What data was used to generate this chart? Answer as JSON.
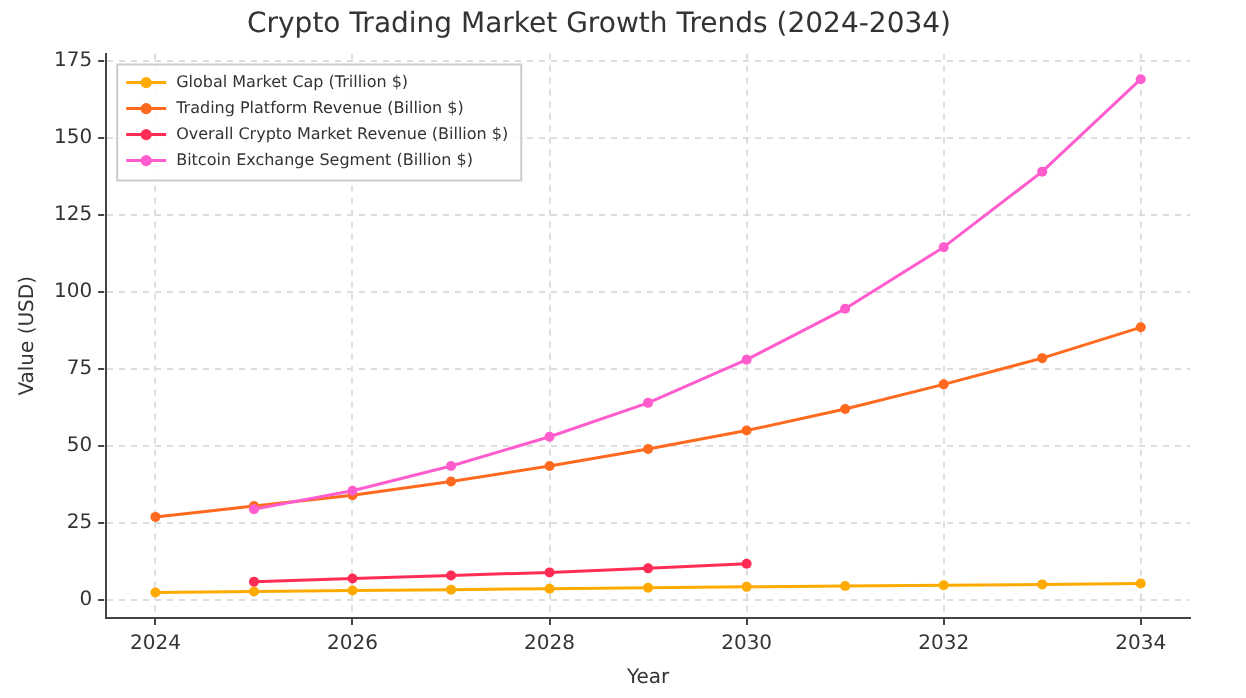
{
  "chart_data": {
    "type": "line",
    "title": "Crypto Trading Market Growth Trends (2024-2034)",
    "xlabel": "Year",
    "ylabel": "Value (USD)",
    "x": [
      2024,
      2025,
      2026,
      2027,
      2028,
      2029,
      2030,
      2031,
      2032,
      2033,
      2034
    ],
    "series": [
      {
        "name": "Global Market Cap (Trillion $)",
        "color": "#ffaa00",
        "values": [
          2.5,
          2.8,
          3.1,
          3.4,
          3.7,
          4.0,
          4.3,
          4.6,
          4.8,
          5.1,
          5.4
        ]
      },
      {
        "name": "Trading Platform Revenue (Billion $)",
        "color": "#ff6a1f",
        "values": [
          27,
          30.5,
          34,
          38.5,
          43.5,
          49,
          55,
          62,
          70,
          78.5,
          88.5
        ]
      },
      {
        "name": "Overall Crypto Market Revenue (Billion $)",
        "color": "#ff2d55",
        "values": [
          null,
          6,
          7,
          8,
          9,
          10.3,
          11.8,
          null,
          null,
          null,
          null
        ]
      },
      {
        "name": "Bitcoin Exchange Segment (Billion $)",
        "color": "#ff5ccd",
        "values": [
          null,
          29.5,
          35.5,
          43.5,
          53,
          64,
          78,
          94.5,
          114.5,
          139,
          169
        ]
      }
    ],
    "xlim": [
      2023.5,
      2034.5
    ],
    "xticks": [
      2024,
      2026,
      2028,
      2030,
      2032,
      2034
    ],
    "ylim": [
      -5.8,
      177.3
    ],
    "yticks": [
      0,
      25,
      50,
      75,
      100,
      125,
      150,
      175
    ],
    "grid": true,
    "legend": "top left",
    "marker": "circle",
    "line_style": "solid"
  }
}
